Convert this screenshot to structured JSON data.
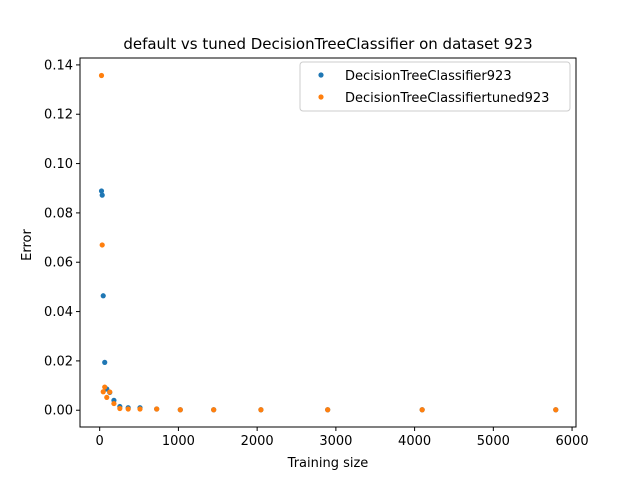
{
  "chart_data": {
    "type": "scatter",
    "title": "default vs tuned DecisionTreeClassifier on dataset 923",
    "xlabel": "Training size",
    "ylabel": "Error",
    "xlim": [
      -250,
      6050
    ],
    "ylim": [
      -0.0068,
      0.1428
    ],
    "xticks": [
      0,
      1000,
      2000,
      3000,
      4000,
      5000,
      6000
    ],
    "xtick_labels": [
      "0",
      "1000",
      "2000",
      "3000",
      "4000",
      "5000",
      "6000"
    ],
    "yticks": [
      0.0,
      0.02,
      0.04,
      0.06,
      0.08,
      0.1,
      0.12,
      0.14
    ],
    "ytick_labels": [
      "0.00",
      "0.02",
      "0.04",
      "0.06",
      "0.08",
      "0.10",
      "0.12",
      "0.14"
    ],
    "grid": false,
    "legend_position": "top-right",
    "series": [
      {
        "name": "DecisionTreeClassifier923",
        "color": "#1f77b4",
        "x": [
          23,
          32,
          45,
          64,
          90,
          128,
          181,
          256,
          362,
          512,
          724,
          1024,
          1448,
          2048,
          2896,
          4096,
          5793
        ],
        "y": [
          0.0889,
          0.0872,
          0.0464,
          0.0194,
          0.0086,
          0.0072,
          0.004,
          0.0015,
          0.001,
          0.001,
          0.0005,
          0.0002,
          0.0002,
          0.0002,
          0.0002,
          0.0002,
          0.0002
        ]
      },
      {
        "name": "DecisionTreeClassifiertuned923",
        "color": "#ff7f0e",
        "x": [
          23,
          32,
          45,
          64,
          90,
          128,
          181,
          256,
          362,
          512,
          724,
          1024,
          1448,
          2048,
          2896,
          4096,
          5793
        ],
        "y": [
          0.1357,
          0.067,
          0.0075,
          0.0094,
          0.0052,
          0.0074,
          0.0027,
          0.0007,
          0.0005,
          0.0005,
          0.0005,
          0.0002,
          0.0002,
          0.0002,
          0.0002,
          0.0002,
          0.0002
        ]
      }
    ]
  }
}
